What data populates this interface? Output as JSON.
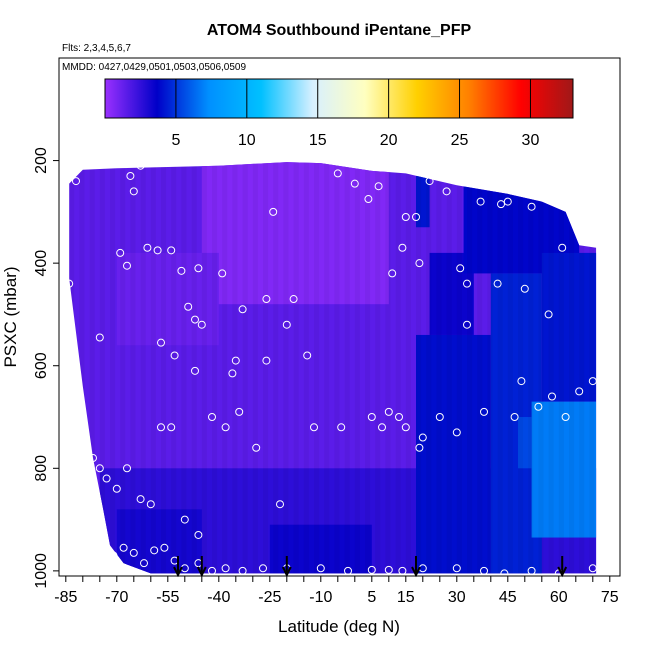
{
  "chart_data": {
    "type": "heatmap",
    "title": "ATOM4 Southbound iPentane_PFP",
    "subtitle_flights": "Flts: 2,3,4,5,6,7",
    "subtitle_dates": "MMDD: 0427,0429,0501,0503,0506,0509",
    "xlabel": "Latitude (deg N)",
    "ylabel": "PSXC (mbar)",
    "xlim": [
      -87,
      78
    ],
    "ylim": [
      1010,
      0
    ],
    "x_ticks": [
      -85,
      -70,
      -55,
      -40,
      -25,
      -10,
      5,
      15,
      30,
      45,
      60,
      75
    ],
    "x_ticks_minor_step": 5,
    "y_ticks": [
      200,
      400,
      600,
      800,
      1000
    ],
    "colorbar": {
      "min": 0,
      "max": 33,
      "ticks": [
        5,
        10,
        15,
        20,
        25,
        30
      ],
      "colors": [
        "#9a30ff",
        "#0000c8",
        "#0090ff",
        "#00c0ff",
        "#d8f0ff",
        "#ffffc0",
        "#ffd000",
        "#ff8000",
        "#ff0000",
        "#a01818"
      ]
    },
    "field_extent": {
      "top_edge": [
        [
          -84,
          245
        ],
        [
          -80,
          218
        ],
        [
          -70,
          215
        ],
        [
          -40,
          210
        ],
        [
          -20,
          203
        ],
        [
          -10,
          205
        ],
        [
          5,
          220
        ],
        [
          15,
          225
        ],
        [
          30,
          248
        ],
        [
          45,
          265
        ],
        [
          55,
          280
        ],
        [
          62,
          300
        ],
        [
          66,
          365
        ],
        [
          71,
          370
        ]
      ],
      "bottom_edge": [
        [
          -84,
          430
        ],
        [
          -80,
          640
        ],
        [
          -77,
          780
        ],
        [
          -74,
          880
        ],
        [
          -72,
          950
        ],
        [
          -68,
          985
        ],
        [
          -60,
          1005
        ],
        [
          71,
          1005
        ]
      ]
    },
    "field_regions": [
      {
        "lat": [
          -86,
          71
        ],
        "p": [
          200,
          1005
        ],
        "value": 1.5
      },
      {
        "lat": [
          -45,
          10
        ],
        "p": [
          200,
          480
        ],
        "value": 0.6
      },
      {
        "lat": [
          -70,
          -40
        ],
        "p": [
          380,
          560
        ],
        "value": 1.2
      },
      {
        "lat": [
          -75,
          71
        ],
        "p": [
          800,
          1005
        ],
        "value": 2.6
      },
      {
        "lat": [
          -70,
          -45
        ],
        "p": [
          880,
          1005
        ],
        "value": 3.2
      },
      {
        "lat": [
          -25,
          5
        ],
        "p": [
          910,
          1005
        ],
        "value": 3.4
      },
      {
        "lat": [
          18,
          40
        ],
        "p": [
          540,
          1005
        ],
        "value": 4.0
      },
      {
        "lat": [
          22,
          35
        ],
        "p": [
          380,
          540
        ],
        "value": 3.4
      },
      {
        "lat": [
          18,
          22
        ],
        "p": [
          230,
          330
        ],
        "value": 4.2
      },
      {
        "lat": [
          32,
          66
        ],
        "p": [
          240,
          420
        ],
        "value": 3.8
      },
      {
        "lat": [
          40,
          55
        ],
        "p": [
          420,
          1005
        ],
        "value": 4.5
      },
      {
        "lat": [
          55,
          71
        ],
        "p": [
          380,
          670
        ],
        "value": 4.2
      },
      {
        "lat": [
          52,
          71
        ],
        "p": [
          670,
          935
        ],
        "value": 6.8
      },
      {
        "lat": [
          48,
          52
        ],
        "p": [
          700,
          800
        ],
        "value": 5.5
      }
    ],
    "sample_points": [
      [
        -84,
        440
      ],
      [
        -82,
        240
      ],
      [
        -75,
        545
      ],
      [
        -69,
        380
      ],
      [
        -67,
        405
      ],
      [
        -66,
        230
      ],
      [
        -65,
        260
      ],
      [
        -63,
        210
      ],
      [
        -61,
        370
      ],
      [
        -58,
        375
      ],
      [
        -57,
        555
      ],
      [
        -54,
        375
      ],
      [
        -53,
        580
      ],
      [
        -51,
        415
      ],
      [
        -49,
        485
      ],
      [
        -47,
        510
      ],
      [
        -47,
        610
      ],
      [
        -46,
        410
      ],
      [
        -45,
        520
      ],
      [
        -39,
        420
      ],
      [
        -36,
        615
      ],
      [
        -35,
        590
      ],
      [
        -33,
        490
      ],
      [
        -26,
        470
      ],
      [
        -24,
        300
      ],
      [
        -20,
        520
      ],
      [
        -18,
        470
      ],
      [
        -14,
        580
      ],
      [
        -5,
        225
      ],
      [
        0,
        245
      ],
      [
        4,
        275
      ],
      [
        7,
        250
      ],
      [
        11,
        420
      ],
      [
        15,
        310
      ],
      [
        18,
        310
      ],
      [
        14,
        370
      ],
      [
        19,
        400
      ],
      [
        22,
        240
      ],
      [
        27,
        260
      ],
      [
        31,
        410
      ],
      [
        33,
        440
      ],
      [
        37,
        280
      ],
      [
        42,
        440
      ],
      [
        43,
        285
      ],
      [
        45,
        280
      ],
      [
        50,
        450
      ],
      [
        52,
        290
      ],
      [
        57,
        500
      ],
      [
        -79,
        750
      ],
      [
        -77,
        780
      ],
      [
        -75,
        800
      ],
      [
        -73,
        820
      ],
      [
        -70,
        840
      ],
      [
        -67,
        800
      ],
      [
        -63,
        860
      ],
      [
        -60,
        870
      ],
      [
        -57,
        720
      ],
      [
        -54,
        720
      ],
      [
        -50,
        900
      ],
      [
        -46,
        930
      ],
      [
        -42,
        700
      ],
      [
        -38,
        720
      ],
      [
        -34,
        690
      ],
      [
        -29,
        760
      ],
      [
        -26,
        590
      ],
      [
        -22,
        870
      ],
      [
        -12,
        720
      ],
      [
        -4,
        720
      ],
      [
        5,
        700
      ],
      [
        10,
        690
      ],
      [
        15,
        720
      ],
      [
        20,
        740
      ],
      [
        25,
        700
      ],
      [
        30,
        730
      ],
      [
        38,
        690
      ],
      [
        47,
        700
      ],
      [
        54,
        680
      ],
      [
        58,
        660
      ],
      [
        62,
        700
      ],
      [
        66,
        650
      ],
      [
        70,
        630
      ],
      [
        -71,
        970
      ],
      [
        -68,
        955
      ],
      [
        -65,
        965
      ],
      [
        -62,
        985
      ],
      [
        -59,
        960
      ],
      [
        -56,
        955
      ],
      [
        -53,
        980
      ],
      [
        -50,
        995
      ],
      [
        -46,
        985
      ],
      [
        -42,
        1000
      ],
      [
        -38,
        995
      ],
      [
        -33,
        1000
      ],
      [
        -27,
        995
      ],
      [
        -20,
        995
      ],
      [
        -10,
        995
      ],
      [
        -2,
        1000
      ],
      [
        5,
        998
      ],
      [
        10,
        998
      ],
      [
        14,
        1000
      ],
      [
        20,
        995
      ],
      [
        30,
        995
      ],
      [
        38,
        1000
      ],
      [
        44,
        1005
      ],
      [
        52,
        1000
      ],
      [
        60,
        1005
      ],
      [
        70,
        995
      ],
      [
        8,
        720
      ],
      [
        13,
        700
      ],
      [
        19,
        760
      ],
      [
        33,
        520
      ],
      [
        49,
        630
      ],
      [
        61,
        370
      ]
    ],
    "arrows_lat": [
      -52,
      -45,
      -20,
      18,
      61
    ]
  }
}
